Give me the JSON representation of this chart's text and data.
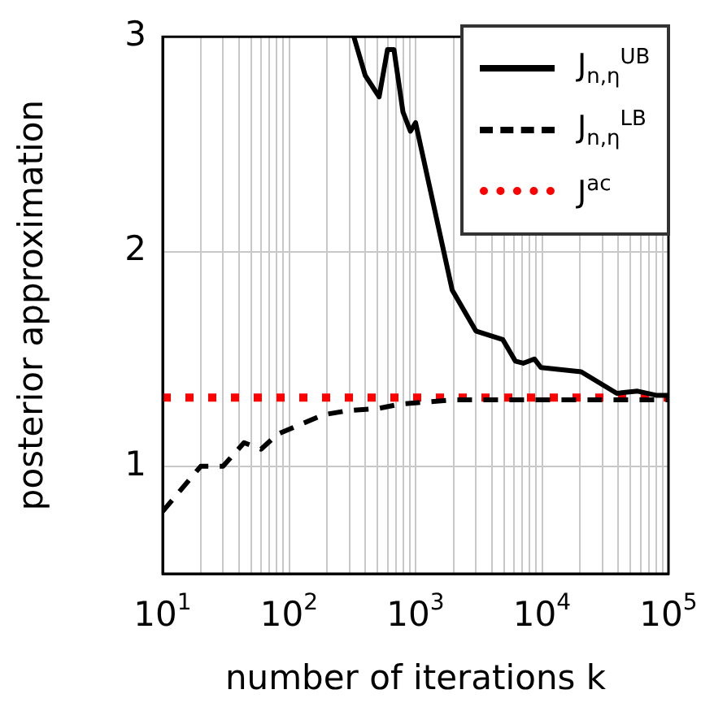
{
  "chart_data": {
    "type": "line",
    "xlabel": "number of iterations k",
    "ylabel": "posterior approximation",
    "log": "x",
    "grid": true,
    "legend": "top right",
    "marker": "none",
    "xlim": [
      10,
      100000
    ],
    "ylim": [
      0.5,
      3
    ],
    "xticks": [
      {
        "value": 10,
        "label": "10$^{1}$"
      },
      {
        "value": 20,
        "label": null
      },
      {
        "value": 30,
        "label": null
      },
      {
        "value": 40,
        "label": null
      },
      {
        "value": 50,
        "label": null
      },
      {
        "value": 60,
        "label": null
      },
      {
        "value": 70,
        "label": null
      },
      {
        "value": 80,
        "label": null
      },
      {
        "value": 90,
        "label": null
      },
      {
        "value": 100,
        "label": "10$^{2}$"
      },
      {
        "value": 200,
        "label": null
      },
      {
        "value": 300,
        "label": null
      },
      {
        "value": 400,
        "label": null
      },
      {
        "value": 500,
        "label": null
      },
      {
        "value": 600,
        "label": null
      },
      {
        "value": 700,
        "label": null
      },
      {
        "value": 800,
        "label": null
      },
      {
        "value": 900,
        "label": null
      },
      {
        "value": 1000,
        "label": "10$^{3}$"
      },
      {
        "value": 2000,
        "label": null
      },
      {
        "value": 3000,
        "label": null
      },
      {
        "value": 4000,
        "label": null
      },
      {
        "value": 5000,
        "label": null
      },
      {
        "value": 6000,
        "label": null
      },
      {
        "value": 7000,
        "label": null
      },
      {
        "value": 8000,
        "label": null
      },
      {
        "value": 9000,
        "label": null
      },
      {
        "value": 10000,
        "label": "10$^{4}$"
      },
      {
        "value": 20000,
        "label": null
      },
      {
        "value": 30000,
        "label": null
      },
      {
        "value": 40000,
        "label": null
      },
      {
        "value": 50000,
        "label": null
      },
      {
        "value": 60000,
        "label": null
      },
      {
        "value": 70000,
        "label": null
      },
      {
        "value": 80000,
        "label": null
      },
      {
        "value": 90000,
        "label": null
      },
      {
        "value": 100000,
        "label": "10$^{5}$"
      }
    ],
    "yticks": [
      1,
      2,
      3
    ],
    "series": [
      {
        "name": "J$_{n,η}$$^{UB}$",
        "color": "#000000",
        "line_style": "solid",
        "x": [
          325,
          400,
          515,
          600,
          675,
          795,
          910,
          1000,
          1950,
          3000,
          4900,
          6150,
          7100,
          8700,
          9800,
          20400,
          39000,
          57000,
          81000,
          100000
        ],
        "values": [
          3.0,
          2.82,
          2.72,
          2.94,
          2.94,
          2.65,
          2.56,
          2.6,
          1.82,
          1.63,
          1.59,
          1.49,
          1.48,
          1.5,
          1.46,
          1.44,
          1.34,
          1.35,
          1.33,
          1.33
        ]
      },
      {
        "name": "J$_{n,η}$$^{LB}$",
        "color": "#000000",
        "line_style": "dashed",
        "x": [
          10,
          20,
          30,
          44,
          60,
          81,
          186,
          295,
          515,
          760,
          2040,
          10000,
          100000
        ],
        "values": [
          0.79,
          1.0,
          1.0,
          1.11,
          1.08,
          1.15,
          1.24,
          1.26,
          1.27,
          1.29,
          1.31,
          1.31,
          1.31
        ]
      },
      {
        "name": "J$^{ac}$",
        "color": "#ff0000",
        "line_style": "dotted",
        "x": [
          10,
          100000
        ],
        "values": [
          1.32,
          1.32
        ]
      }
    ]
  }
}
